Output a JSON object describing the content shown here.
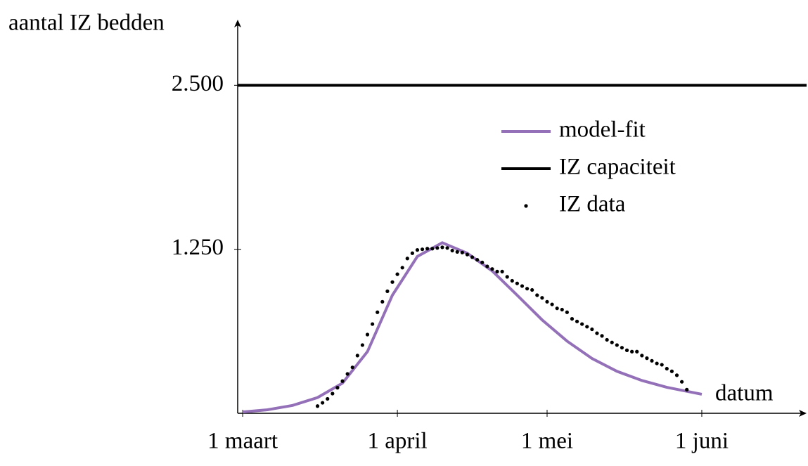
{
  "chart_data": {
    "type": "line",
    "x_label": "datum",
    "y_label": "aantal IZ bedden",
    "xlim": [
      -1,
      113
    ],
    "ylim": [
      0,
      3000
    ],
    "xticks": [
      {
        "value": 0,
        "label": "1 maart"
      },
      {
        "value": 31,
        "label": "1 april"
      },
      {
        "value": 61,
        "label": "1 mei"
      },
      {
        "value": 92,
        "label": "1 juni"
      }
    ],
    "yticks": [
      {
        "value": 1250,
        "label": "1.250"
      },
      {
        "value": 2500,
        "label": "2.500"
      }
    ],
    "legend": "upper right",
    "series": [
      {
        "name": "model-fit",
        "color": "#9370b8",
        "type": "line",
        "x": [
          0,
          5,
          10,
          15,
          20,
          25,
          30,
          35,
          40,
          45,
          50,
          55,
          60,
          65,
          70,
          75,
          80,
          85,
          92
        ],
        "values": [
          10,
          27,
          60,
          120,
          230,
          470,
          900,
          1195,
          1300,
          1220,
          1085,
          900,
          712,
          550,
          418,
          320,
          250,
          198,
          145
        ]
      },
      {
        "name": "IZ capaciteit",
        "color": "#000000",
        "type": "line",
        "x": [
          -1,
          113
        ],
        "values": [
          2500,
          2500
        ]
      },
      {
        "name": "IZ data",
        "color": "#000000",
        "type": "scatter",
        "x": [
          15,
          16,
          17,
          18,
          19,
          20,
          21,
          22,
          23,
          24,
          25,
          26,
          27,
          28,
          29,
          30,
          31,
          32,
          33,
          34,
          35,
          36,
          37,
          38,
          39,
          40,
          41,
          42,
          43,
          44,
          45,
          46,
          47,
          48,
          49,
          50,
          51,
          52,
          53,
          54,
          55,
          56,
          57,
          58,
          59,
          60,
          61,
          62,
          63,
          64,
          65,
          66,
          67,
          68,
          69,
          70,
          71,
          72,
          73,
          74,
          75,
          76,
          77,
          78,
          79,
          80,
          81,
          82,
          83,
          84,
          85,
          86,
          87,
          88,
          89
        ],
        "values": [
          55,
          80,
          110,
          150,
          195,
          245,
          300,
          350,
          440,
          520,
          600,
          680,
          770,
          850,
          930,
          1000,
          1060,
          1110,
          1180,
          1220,
          1245,
          1250,
          1255,
          1255,
          1260,
          1265,
          1260,
          1240,
          1230,
          1225,
          1210,
          1190,
          1170,
          1150,
          1120,
          1100,
          1080,
          1080,
          1040,
          1010,
          990,
          970,
          950,
          940,
          900,
          880,
          850,
          830,
          800,
          790,
          770,
          720,
          700,
          680,
          660,
          640,
          610,
          590,
          560,
          540,
          520,
          500,
          480,
          470,
          470,
          440,
          420,
          400,
          380,
          370,
          340,
          320,
          290,
          240,
          180
        ]
      }
    ]
  }
}
